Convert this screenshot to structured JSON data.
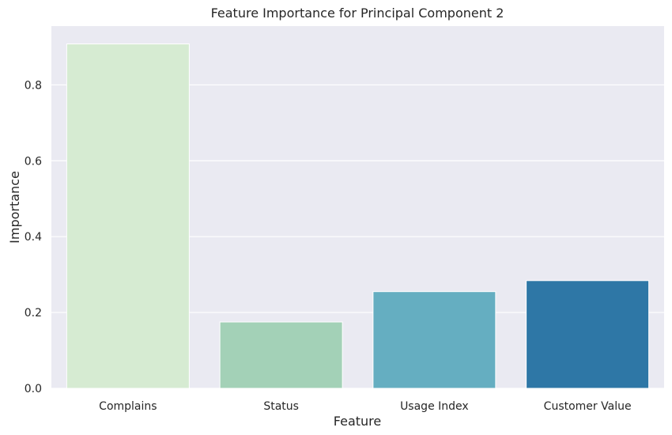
{
  "chart_data": {
    "type": "bar",
    "title": "Feature Importance for Principal Component 2",
    "xlabel": "Feature",
    "ylabel": "Importance",
    "categories": [
      "Complains",
      "Status",
      "Usage Index",
      "Customer Value"
    ],
    "values": [
      0.908,
      0.175,
      0.255,
      0.284
    ],
    "ylim": [
      0,
      0.955
    ],
    "yticks": [
      0.0,
      0.2,
      0.4,
      0.6,
      0.8
    ],
    "ytick_labels": [
      "0.0",
      "0.2",
      "0.4",
      "0.6",
      "0.8"
    ],
    "bar_colors": [
      "#d6ebd2",
      "#a3d1b7",
      "#65aec1",
      "#2e77a6"
    ],
    "grid": true,
    "grid_axis": "y",
    "background": "#eaeaf2"
  }
}
